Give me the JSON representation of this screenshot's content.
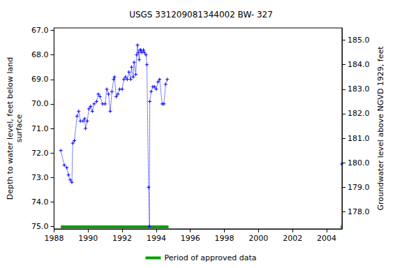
{
  "chart_data": {
    "type": "line",
    "title": "USGS 331209081344002 BW- 327",
    "y_label": "Depth to water level, feet below land\nsurface",
    "y2_label": "Groundwater level above NGVD 1929, feet",
    "x": [
      1988.4,
      1988.6,
      1988.75,
      1988.85,
      1988.95,
      1989.05,
      1989.1,
      1989.2,
      1989.35,
      1989.45,
      1989.55,
      1989.7,
      1989.8,
      1989.85,
      1989.95,
      1990.05,
      1990.15,
      1990.25,
      1990.35,
      1990.5,
      1990.6,
      1990.7,
      1990.85,
      1991.0,
      1991.1,
      1991.2,
      1991.3,
      1991.4,
      1991.5,
      1991.55,
      1991.65,
      1991.75,
      1991.85,
      1992.0,
      1992.1,
      1992.2,
      1992.3,
      1992.4,
      1992.5,
      1992.55,
      1992.65,
      1992.7,
      1992.8,
      1992.85,
      1992.9,
      1992.95,
      1993.0,
      1993.05,
      1993.1,
      1993.15,
      1993.25,
      1993.3,
      1993.4,
      1993.45,
      1993.55,
      1993.6,
      1993.62,
      1993.7,
      1993.8,
      1993.9,
      1994.0,
      1994.1,
      1994.2,
      1994.35,
      1994.45,
      1994.55,
      1994.65,
      1999.5,
      2004.88
    ],
    "series": [
      {
        "color": "#0000ff",
        "marker": "plus",
        "line_style": "dotted",
        "values": [
          71.9,
          72.5,
          72.6,
          72.9,
          73.1,
          73.2,
          71.6,
          71.5,
          70.5,
          70.3,
          70.7,
          70.7,
          70.6,
          71.0,
          70.7,
          70.2,
          70.1,
          70.3,
          70.0,
          69.9,
          69.6,
          69.7,
          70.0,
          70.0,
          69.4,
          69.6,
          70.3,
          69.5,
          69.0,
          68.9,
          69.7,
          69.6,
          69.4,
          69.4,
          69.0,
          68.9,
          69.0,
          68.7,
          69.0,
          68.5,
          68.9,
          68.3,
          68.8,
          68.0,
          67.6,
          67.9,
          68.2,
          67.8,
          67.8,
          67.9,
          67.8,
          67.9,
          68.0,
          68.4,
          73.4,
          75.0,
          69.9,
          69.5,
          69.3,
          69.3,
          69.4,
          69.1,
          69.0,
          70.0,
          70.0,
          69.2,
          69.0,
          null,
          72.45
        ]
      }
    ],
    "approved_periods": {
      "label": "Period of approved data",
      "color": "#00a000",
      "ranges": [
        [
          1988.4,
          1994.72
        ],
        [
          2004.82,
          2004.9
        ]
      ]
    },
    "xlim": [
      1988,
      2004.9
    ],
    "xticks": [
      1988,
      1990,
      1992,
      1994,
      1996,
      1998,
      2000,
      2002,
      2004
    ],
    "ylim": [
      66.9,
      75.1
    ],
    "yticks": [
      {
        "value": 67,
        "label": "67.0"
      },
      {
        "value": 68,
        "label": "68.0"
      },
      {
        "value": 69,
        "label": "69.0"
      },
      {
        "value": 70,
        "label": "70.0"
      },
      {
        "value": 71,
        "label": "71.0"
      },
      {
        "value": 72,
        "label": "72.0"
      },
      {
        "value": 73,
        "label": "73.0"
      },
      {
        "value": 74,
        "label": "74.0"
      },
      {
        "value": 75,
        "label": "75.0"
      }
    ],
    "y2lim": [
      177.3,
      185.5
    ],
    "y2ticks": [
      {
        "value": 178,
        "label": "178.0"
      },
      {
        "value": 179,
        "label": "179.0"
      },
      {
        "value": 180,
        "label": "180.0"
      },
      {
        "value": 181,
        "label": "181.0"
      },
      {
        "value": 182,
        "label": "182.0"
      },
      {
        "value": 183,
        "label": "183.0"
      },
      {
        "value": 184,
        "label": "184.0"
      },
      {
        "value": 185,
        "label": "185.0"
      }
    ],
    "grid": false,
    "legend": "bottom"
  }
}
